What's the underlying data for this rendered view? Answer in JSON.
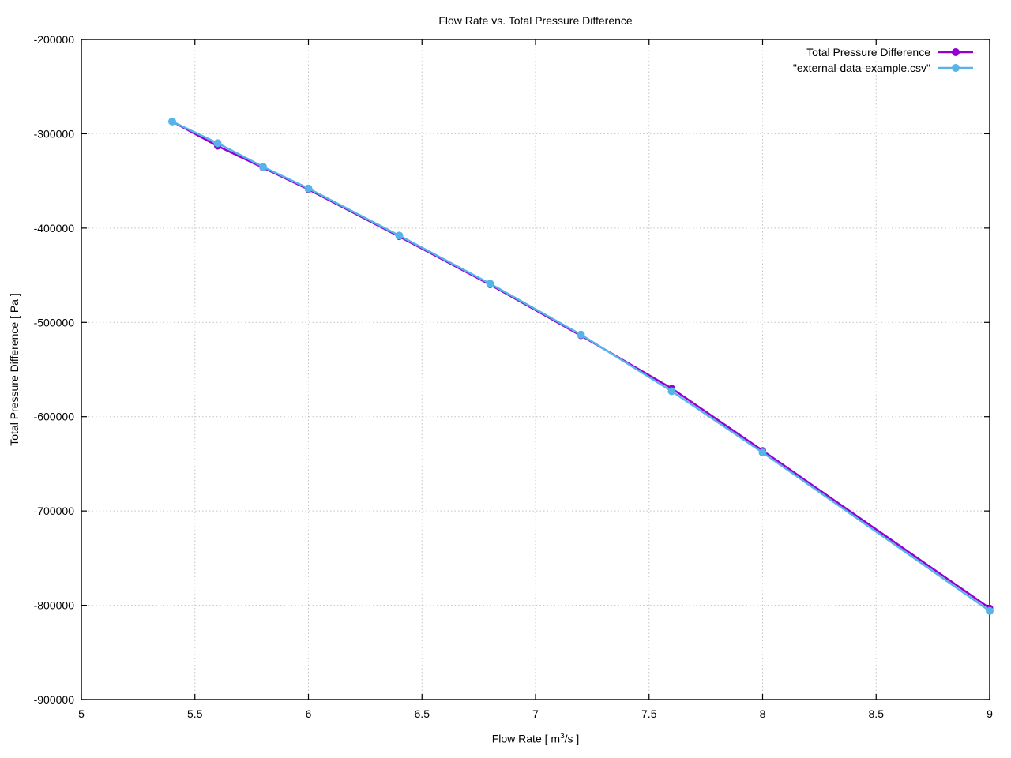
{
  "chart_data": {
    "type": "line",
    "title": "Flow Rate vs. Total Pressure Difference",
    "xlabel": {
      "prefix": "Flow Rate [ m",
      "sup": "3",
      "suffix": "/s ]"
    },
    "ylabel": "Total Pressure Difference [ Pa ]",
    "xlim": [
      5,
      9
    ],
    "ylim": [
      -900000,
      -200000
    ],
    "x_ticks": [
      5,
      5.5,
      6,
      6.5,
      7,
      7.5,
      8,
      8.5,
      9
    ],
    "x_tick_labels": [
      "5",
      "5.5",
      "6",
      "6.5",
      "7",
      "7.5",
      "8",
      "8.5",
      "9"
    ],
    "y_ticks": [
      -900000,
      -800000,
      -700000,
      -600000,
      -500000,
      -400000,
      -300000,
      -200000
    ],
    "y_tick_labels": [
      "-900000",
      "-800000",
      "-700000",
      "-600000",
      "-500000",
      "-400000",
      "-300000",
      "-200000"
    ],
    "grid": true,
    "legend_position": "top-right",
    "x": [
      5.4,
      5.6,
      5.8,
      6.0,
      6.4,
      6.8,
      7.2,
      7.6,
      8.0,
      9.0
    ],
    "series": [
      {
        "name": "Total Pressure Difference",
        "color": "#9400d3",
        "values": [
          -287000,
          -313000,
          -336000,
          -359000,
          -409000,
          -460000,
          -514000,
          -570000,
          -636000,
          -803000
        ]
      },
      {
        "name": "\"external-data-example.csv\"",
        "color": "#56b4e9",
        "values": [
          -287000,
          -310000,
          -335000,
          -358000,
          -408000,
          -459000,
          -513000,
          -573000,
          -638000,
          -806000
        ]
      }
    ]
  }
}
